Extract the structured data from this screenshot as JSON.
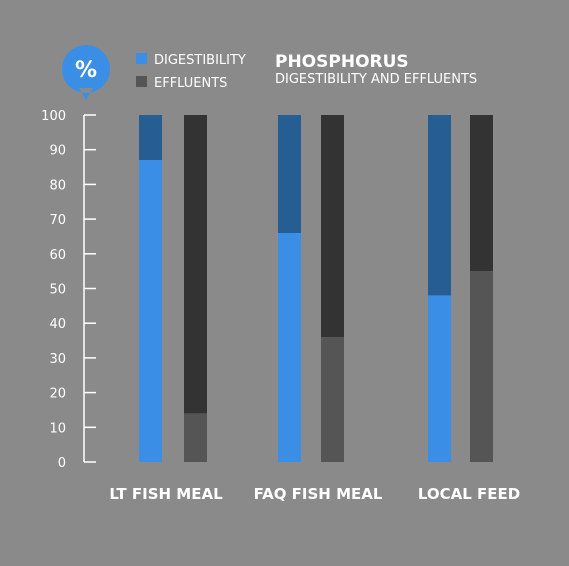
{
  "badge": {
    "symbol": "%",
    "color": "#3a8ee6"
  },
  "legend": [
    {
      "label": "DIGESTIBILITY",
      "color": "#3a8ee6"
    },
    {
      "label": "EFFLUENTS",
      "color": "#555555"
    }
  ],
  "title": "PHOSPHORUS",
  "subtitle": "DIGESTIBILITY AND EFFLUENTS",
  "colors": {
    "background": "#8a8a8b",
    "digestibility_fill": "#3a8ee6",
    "digestibility_remainder": "#265d92",
    "effluents_fill": "#555555",
    "effluents_remainder": "#333333",
    "axis": "#ffffff"
  },
  "chart_data": {
    "type": "bar",
    "categories": [
      "LT FISH MEAL",
      "FAQ FISH MEAL",
      "LOCAL FEED"
    ],
    "series": [
      {
        "name": "DIGESTIBILITY",
        "values": [
          87,
          66,
          48
        ]
      },
      {
        "name": "EFFLUENTS",
        "values": [
          14,
          36,
          55
        ]
      }
    ],
    "ylim": [
      0,
      100
    ],
    "yticks": [
      0,
      10,
      20,
      30,
      40,
      50,
      60,
      70,
      80,
      90,
      100
    ],
    "grid": false,
    "legend_position": "top",
    "stacked_to_100": true
  }
}
